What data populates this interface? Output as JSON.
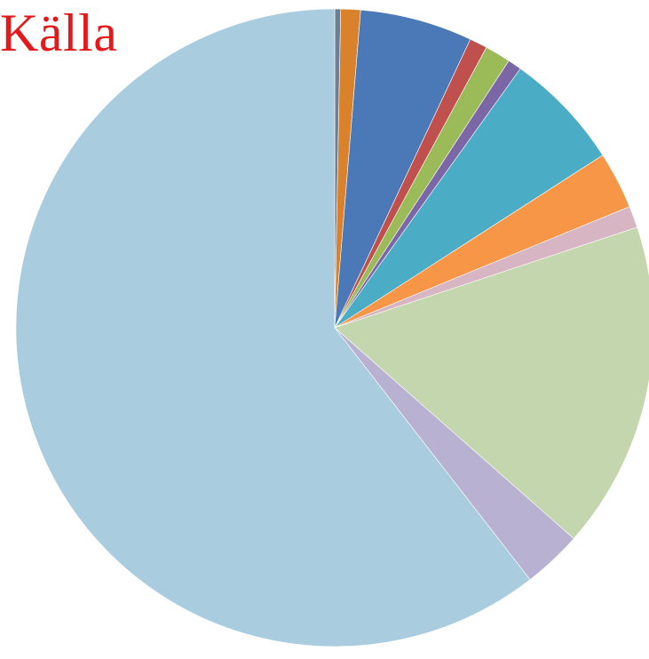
{
  "source_label": "Källa",
  "colors": {
    "label": "#e3191b"
  },
  "chart_data": {
    "type": "pie",
    "start_angle_deg": 0,
    "direction": "clockwise",
    "slices": [
      {
        "value": 0.3,
        "color": "#6e7f95"
      },
      {
        "value": 1.0,
        "color": "#d9822b"
      },
      {
        "value": 5.7,
        "color": "#4b79b8"
      },
      {
        "value": 0.9,
        "color": "#c0504d"
      },
      {
        "value": 1.3,
        "color": "#9bbb59"
      },
      {
        "value": 0.7,
        "color": "#7b66a6"
      },
      {
        "value": 6.0,
        "color": "#4bacc6"
      },
      {
        "value": 2.9,
        "color": "#f79646"
      },
      {
        "value": 1.1,
        "color": "#d7b5c2"
      },
      {
        "value": 16.6,
        "color": "#c4d6ad"
      },
      {
        "value": 3.0,
        "color": "#b9b1d2"
      },
      {
        "value": 60.5,
        "color": "#a9cddf"
      }
    ]
  }
}
